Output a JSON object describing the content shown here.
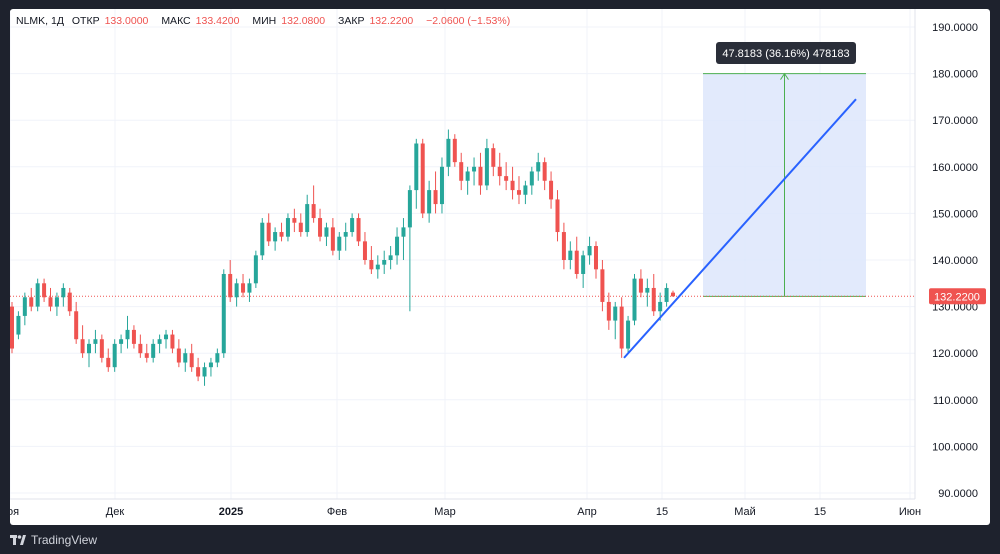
{
  "legend": {
    "symbol": "NLMK, 1Д",
    "open_label": "ОТКР",
    "open": "133.0000",
    "high_label": "МАКС",
    "high": "133.4200",
    "low_label": "МИН",
    "low": "132.0800",
    "close_label": "ЗАКР",
    "close": "132.2200",
    "change": "−2.0600 (−1.53%)"
  },
  "price_label": "132.2200",
  "measure_label": "47.8183 (36.16%) 478183",
  "footer": {
    "brand": "TradingView"
  },
  "colors": {
    "up": "#26a69a",
    "down": "#ef5350",
    "trend": "#2962ff",
    "measure_fill": "#dde6fb",
    "measure_line": "#4caf50",
    "price_line": "#ef5350"
  },
  "chart_data": {
    "type": "candlestick",
    "symbol": "NLMK",
    "interval": "1Д",
    "y_ticks": [
      "90.0000",
      "100.0000",
      "110.0000",
      "120.0000",
      "130.0000",
      "140.0000",
      "150.0000",
      "160.0000",
      "170.0000",
      "180.0000",
      "190.0000"
    ],
    "ylim": [
      89,
      194
    ],
    "x_ticks": [
      "ноя",
      "Дек",
      "2025",
      "Фев",
      "Мар",
      "Апр",
      "15",
      "Май",
      "15",
      "Июн"
    ],
    "last_price": 132.22,
    "ohlc": [
      [
        130,
        131,
        120,
        121
      ],
      [
        124,
        129,
        123,
        128
      ],
      [
        128,
        133,
        126,
        132
      ],
      [
        132,
        134,
        129,
        130
      ],
      [
        130,
        136,
        129,
        135
      ],
      [
        135,
        136,
        131,
        132
      ],
      [
        132,
        134,
        129,
        130
      ],
      [
        130,
        133,
        128,
        132
      ],
      [
        132,
        135,
        130,
        134
      ],
      [
        133,
        134,
        128,
        129
      ],
      [
        129,
        131,
        122,
        123
      ],
      [
        123,
        126,
        119,
        120
      ],
      [
        120,
        123,
        117,
        122
      ],
      [
        122,
        125,
        120,
        123
      ],
      [
        123,
        124,
        118,
        119
      ],
      [
        119,
        121,
        116,
        117
      ],
      [
        117,
        123,
        116,
        122
      ],
      [
        122,
        124,
        120,
        123
      ],
      [
        123,
        128,
        121,
        125
      ],
      [
        125,
        126,
        121,
        122
      ],
      [
        122,
        124,
        119,
        120
      ],
      [
        120,
        122,
        118,
        119
      ],
      [
        119,
        123,
        118,
        122
      ],
      [
        122,
        124,
        120,
        123
      ],
      [
        123,
        125,
        121,
        124
      ],
      [
        124,
        125,
        120,
        121
      ],
      [
        121,
        123,
        117,
        118
      ],
      [
        118,
        121,
        116,
        120
      ],
      [
        120,
        122,
        116,
        117
      ],
      [
        117,
        119,
        114,
        115
      ],
      [
        115,
        118,
        113,
        117
      ],
      [
        117,
        119,
        115,
        118
      ],
      [
        118,
        121,
        117,
        120
      ],
      [
        120,
        138,
        119,
        137
      ],
      [
        137,
        140,
        131,
        132
      ],
      [
        132,
        136,
        130,
        135
      ],
      [
        135,
        137,
        132,
        133
      ],
      [
        133,
        136,
        131,
        135
      ],
      [
        135,
        142,
        134,
        141
      ],
      [
        141,
        149,
        140,
        148
      ],
      [
        148,
        150,
        143,
        144
      ],
      [
        144,
        147,
        142,
        146
      ],
      [
        146,
        148,
        144,
        145
      ],
      [
        145,
        150,
        144,
        149
      ],
      [
        149,
        151,
        146,
        148
      ],
      [
        148,
        150,
        145,
        146
      ],
      [
        146,
        154,
        145,
        152
      ],
      [
        152,
        156,
        148,
        149
      ],
      [
        149,
        151,
        144,
        145
      ],
      [
        145,
        148,
        143,
        147
      ],
      [
        147,
        149,
        141,
        142
      ],
      [
        142,
        146,
        140,
        145
      ],
      [
        145,
        148,
        142,
        146
      ],
      [
        146,
        150,
        145,
        149
      ],
      [
        149,
        150,
        143,
        144
      ],
      [
        144,
        146,
        139,
        140
      ],
      [
        140,
        143,
        137,
        138
      ],
      [
        138,
        141,
        136,
        139
      ],
      [
        139,
        142,
        137,
        140
      ],
      [
        140,
        143,
        138,
        141
      ],
      [
        141,
        147,
        139,
        145
      ],
      [
        145,
        149,
        140,
        147
      ],
      [
        147,
        156,
        129,
        155
      ],
      [
        155,
        166,
        151,
        165
      ],
      [
        165,
        166,
        149,
        150
      ],
      [
        150,
        157,
        148,
        155
      ],
      [
        155,
        159,
        150,
        152
      ],
      [
        152,
        162,
        150,
        160
      ],
      [
        160,
        168,
        158,
        166
      ],
      [
        166,
        167,
        160,
        161
      ],
      [
        161,
        163,
        155,
        157
      ],
      [
        157,
        160,
        154,
        159
      ],
      [
        159,
        162,
        156,
        160
      ],
      [
        160,
        163,
        154,
        156
      ],
      [
        156,
        166,
        155,
        164
      ],
      [
        164,
        165,
        158,
        160
      ],
      [
        160,
        163,
        156,
        158
      ],
      [
        158,
        161,
        155,
        157
      ],
      [
        157,
        160,
        153,
        155
      ],
      [
        155,
        158,
        152,
        154
      ],
      [
        154,
        157,
        152,
        156
      ],
      [
        156,
        160,
        154,
        159
      ],
      [
        159,
        163,
        157,
        161
      ],
      [
        161,
        162,
        155,
        157
      ],
      [
        157,
        159,
        151,
        153
      ],
      [
        153,
        155,
        144,
        146
      ],
      [
        146,
        148,
        138,
        140
      ],
      [
        140,
        144,
        138,
        142
      ],
      [
        142,
        145,
        136,
        137
      ],
      [
        137,
        142,
        134,
        141
      ],
      [
        141,
        145,
        139,
        143
      ],
      [
        143,
        144,
        136,
        138
      ],
      [
        138,
        140,
        129,
        131
      ],
      [
        131,
        133,
        125,
        127
      ],
      [
        127,
        131,
        123,
        130
      ],
      [
        130,
        132,
        119,
        121
      ],
      [
        121,
        128,
        120,
        127
      ],
      [
        127,
        137,
        126,
        136
      ],
      [
        136,
        138,
        132,
        133
      ],
      [
        133,
        136,
        130,
        134
      ],
      [
        134,
        137,
        128,
        129
      ],
      [
        129,
        133,
        127,
        131
      ],
      [
        131,
        135,
        130,
        134
      ],
      [
        133,
        133.42,
        132.08,
        132.22
      ]
    ],
    "trend_line": {
      "from": [
        "2025-04-08",
        119
      ],
      "to": [
        "2025-05-22",
        174.5
      ]
    },
    "measure": {
      "low": 132.2,
      "high": 180.0,
      "change": 47.8183,
      "change_pct": 36.16,
      "ticks": 478183
    }
  }
}
